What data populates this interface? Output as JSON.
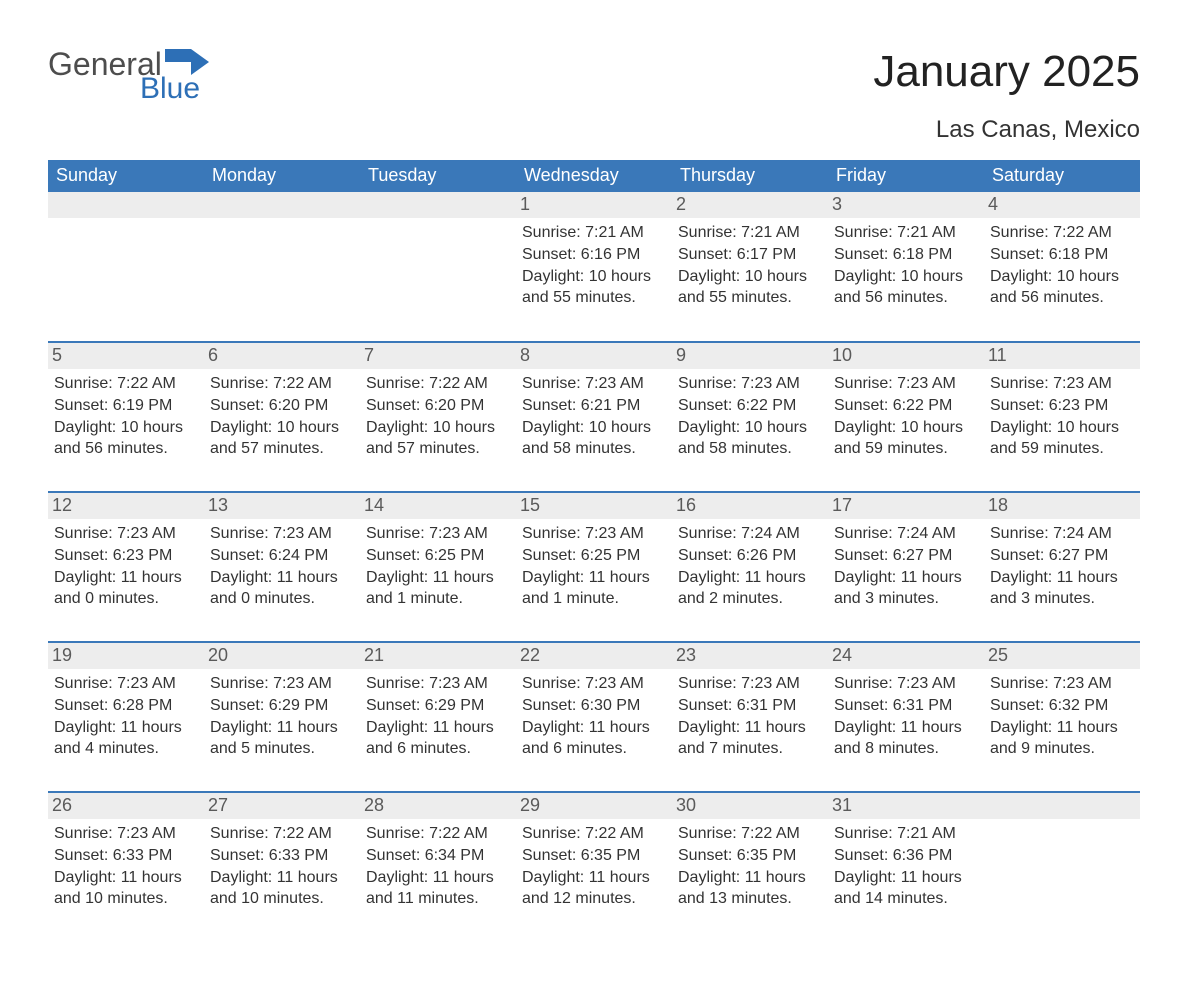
{
  "logo": {
    "word1": "General",
    "word2": "Blue",
    "brand_color": "#2d6fb6"
  },
  "header": {
    "month_title": "January 2025",
    "location": "Las Canas, Mexico"
  },
  "calendar": {
    "header_bg": "#3a78b9",
    "header_fg": "#ffffff",
    "daynum_bg": "#ededed",
    "row_border_color": "#3a78b9",
    "text_color": "#333333",
    "columns": [
      "Sunday",
      "Monday",
      "Tuesday",
      "Wednesday",
      "Thursday",
      "Friday",
      "Saturday"
    ],
    "weeks": [
      [
        {
          "day": null
        },
        {
          "day": null
        },
        {
          "day": null
        },
        {
          "day": "1",
          "sunrise": "Sunrise: 7:21 AM",
          "sunset": "Sunset: 6:16 PM",
          "daylight1": "Daylight: 10 hours",
          "daylight2": "and 55 minutes."
        },
        {
          "day": "2",
          "sunrise": "Sunrise: 7:21 AM",
          "sunset": "Sunset: 6:17 PM",
          "daylight1": "Daylight: 10 hours",
          "daylight2": "and 55 minutes."
        },
        {
          "day": "3",
          "sunrise": "Sunrise: 7:21 AM",
          "sunset": "Sunset: 6:18 PM",
          "daylight1": "Daylight: 10 hours",
          "daylight2": "and 56 minutes."
        },
        {
          "day": "4",
          "sunrise": "Sunrise: 7:22 AM",
          "sunset": "Sunset: 6:18 PM",
          "daylight1": "Daylight: 10 hours",
          "daylight2": "and 56 minutes."
        }
      ],
      [
        {
          "day": "5",
          "sunrise": "Sunrise: 7:22 AM",
          "sunset": "Sunset: 6:19 PM",
          "daylight1": "Daylight: 10 hours",
          "daylight2": "and 56 minutes."
        },
        {
          "day": "6",
          "sunrise": "Sunrise: 7:22 AM",
          "sunset": "Sunset: 6:20 PM",
          "daylight1": "Daylight: 10 hours",
          "daylight2": "and 57 minutes."
        },
        {
          "day": "7",
          "sunrise": "Sunrise: 7:22 AM",
          "sunset": "Sunset: 6:20 PM",
          "daylight1": "Daylight: 10 hours",
          "daylight2": "and 57 minutes."
        },
        {
          "day": "8",
          "sunrise": "Sunrise: 7:23 AM",
          "sunset": "Sunset: 6:21 PM",
          "daylight1": "Daylight: 10 hours",
          "daylight2": "and 58 minutes."
        },
        {
          "day": "9",
          "sunrise": "Sunrise: 7:23 AM",
          "sunset": "Sunset: 6:22 PM",
          "daylight1": "Daylight: 10 hours",
          "daylight2": "and 58 minutes."
        },
        {
          "day": "10",
          "sunrise": "Sunrise: 7:23 AM",
          "sunset": "Sunset: 6:22 PM",
          "daylight1": "Daylight: 10 hours",
          "daylight2": "and 59 minutes."
        },
        {
          "day": "11",
          "sunrise": "Sunrise: 7:23 AM",
          "sunset": "Sunset: 6:23 PM",
          "daylight1": "Daylight: 10 hours",
          "daylight2": "and 59 minutes."
        }
      ],
      [
        {
          "day": "12",
          "sunrise": "Sunrise: 7:23 AM",
          "sunset": "Sunset: 6:23 PM",
          "daylight1": "Daylight: 11 hours",
          "daylight2": "and 0 minutes."
        },
        {
          "day": "13",
          "sunrise": "Sunrise: 7:23 AM",
          "sunset": "Sunset: 6:24 PM",
          "daylight1": "Daylight: 11 hours",
          "daylight2": "and 0 minutes."
        },
        {
          "day": "14",
          "sunrise": "Sunrise: 7:23 AM",
          "sunset": "Sunset: 6:25 PM",
          "daylight1": "Daylight: 11 hours",
          "daylight2": "and 1 minute."
        },
        {
          "day": "15",
          "sunrise": "Sunrise: 7:23 AM",
          "sunset": "Sunset: 6:25 PM",
          "daylight1": "Daylight: 11 hours",
          "daylight2": "and 1 minute."
        },
        {
          "day": "16",
          "sunrise": "Sunrise: 7:24 AM",
          "sunset": "Sunset: 6:26 PM",
          "daylight1": "Daylight: 11 hours",
          "daylight2": "and 2 minutes."
        },
        {
          "day": "17",
          "sunrise": "Sunrise: 7:24 AM",
          "sunset": "Sunset: 6:27 PM",
          "daylight1": "Daylight: 11 hours",
          "daylight2": "and 3 minutes."
        },
        {
          "day": "18",
          "sunrise": "Sunrise: 7:24 AM",
          "sunset": "Sunset: 6:27 PM",
          "daylight1": "Daylight: 11 hours",
          "daylight2": "and 3 minutes."
        }
      ],
      [
        {
          "day": "19",
          "sunrise": "Sunrise: 7:23 AM",
          "sunset": "Sunset: 6:28 PM",
          "daylight1": "Daylight: 11 hours",
          "daylight2": "and 4 minutes."
        },
        {
          "day": "20",
          "sunrise": "Sunrise: 7:23 AM",
          "sunset": "Sunset: 6:29 PM",
          "daylight1": "Daylight: 11 hours",
          "daylight2": "and 5 minutes."
        },
        {
          "day": "21",
          "sunrise": "Sunrise: 7:23 AM",
          "sunset": "Sunset: 6:29 PM",
          "daylight1": "Daylight: 11 hours",
          "daylight2": "and 6 minutes."
        },
        {
          "day": "22",
          "sunrise": "Sunrise: 7:23 AM",
          "sunset": "Sunset: 6:30 PM",
          "daylight1": "Daylight: 11 hours",
          "daylight2": "and 6 minutes."
        },
        {
          "day": "23",
          "sunrise": "Sunrise: 7:23 AM",
          "sunset": "Sunset: 6:31 PM",
          "daylight1": "Daylight: 11 hours",
          "daylight2": "and 7 minutes."
        },
        {
          "day": "24",
          "sunrise": "Sunrise: 7:23 AM",
          "sunset": "Sunset: 6:31 PM",
          "daylight1": "Daylight: 11 hours",
          "daylight2": "and 8 minutes."
        },
        {
          "day": "25",
          "sunrise": "Sunrise: 7:23 AM",
          "sunset": "Sunset: 6:32 PM",
          "daylight1": "Daylight: 11 hours",
          "daylight2": "and 9 minutes."
        }
      ],
      [
        {
          "day": "26",
          "sunrise": "Sunrise: 7:23 AM",
          "sunset": "Sunset: 6:33 PM",
          "daylight1": "Daylight: 11 hours",
          "daylight2": "and 10 minutes."
        },
        {
          "day": "27",
          "sunrise": "Sunrise: 7:22 AM",
          "sunset": "Sunset: 6:33 PM",
          "daylight1": "Daylight: 11 hours",
          "daylight2": "and 10 minutes."
        },
        {
          "day": "28",
          "sunrise": "Sunrise: 7:22 AM",
          "sunset": "Sunset: 6:34 PM",
          "daylight1": "Daylight: 11 hours",
          "daylight2": "and 11 minutes."
        },
        {
          "day": "29",
          "sunrise": "Sunrise: 7:22 AM",
          "sunset": "Sunset: 6:35 PM",
          "daylight1": "Daylight: 11 hours",
          "daylight2": "and 12 minutes."
        },
        {
          "day": "30",
          "sunrise": "Sunrise: 7:22 AM",
          "sunset": "Sunset: 6:35 PM",
          "daylight1": "Daylight: 11 hours",
          "daylight2": "and 13 minutes."
        },
        {
          "day": "31",
          "sunrise": "Sunrise: 7:21 AM",
          "sunset": "Sunset: 6:36 PM",
          "daylight1": "Daylight: 11 hours",
          "daylight2": "and 14 minutes."
        },
        {
          "day": null
        }
      ]
    ]
  }
}
